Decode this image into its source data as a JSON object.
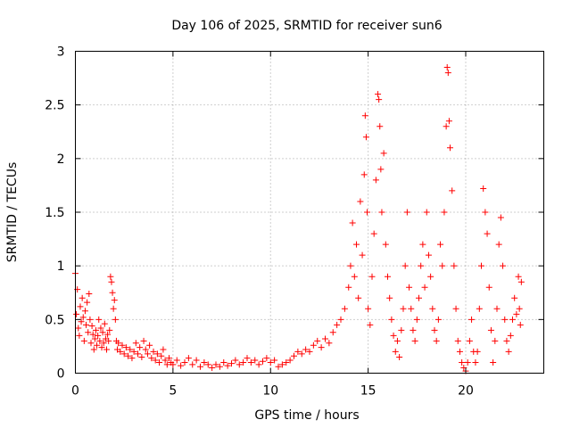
{
  "chart_data": {
    "type": "scatter",
    "title": "Day 106 of 2025, SRMTID for receiver sun6",
    "xlabel": "GPS time / hours",
    "ylabel": "SRMTID / TECUs",
    "xlim": [
      0,
      24
    ],
    "ylim": [
      0,
      3
    ],
    "xticks": [
      0,
      5,
      10,
      15,
      20
    ],
    "yticks": [
      0,
      0.5,
      1,
      1.5,
      2,
      2.5,
      3
    ],
    "xtick_labels": [
      "0",
      "5",
      "10",
      "15",
      "20"
    ],
    "ytick_labels": [
      "0",
      "0.5",
      "1",
      "1.5",
      "2",
      "2.5",
      "3"
    ],
    "grid": true,
    "marker": "+",
    "series": [
      {
        "name": "SRMTID",
        "color": "#ff0000",
        "points": [
          [
            0.0,
            0.93
          ],
          [
            0.05,
            0.55
          ],
          [
            0.1,
            0.78
          ],
          [
            0.15,
            0.42
          ],
          [
            0.2,
            0.35
          ],
          [
            0.25,
            0.62
          ],
          [
            0.3,
            0.48
          ],
          [
            0.35,
            0.7
          ],
          [
            0.4,
            0.52
          ],
          [
            0.45,
            0.3
          ],
          [
            0.5,
            0.58
          ],
          [
            0.55,
            0.45
          ],
          [
            0.6,
            0.66
          ],
          [
            0.65,
            0.38
          ],
          [
            0.7,
            0.74
          ],
          [
            0.75,
            0.5
          ],
          [
            0.8,
            0.28
          ],
          [
            0.85,
            0.44
          ],
          [
            0.9,
            0.36
          ],
          [
            0.95,
            0.22
          ],
          [
            1.0,
            0.32
          ],
          [
            1.05,
            0.4
          ],
          [
            1.1,
            0.26
          ],
          [
            1.15,
            0.35
          ],
          [
            1.2,
            0.5
          ],
          [
            1.25,
            0.3
          ],
          [
            1.3,
            0.42
          ],
          [
            1.35,
            0.24
          ],
          [
            1.4,
            0.38
          ],
          [
            1.45,
            0.28
          ],
          [
            1.5,
            0.46
          ],
          [
            1.55,
            0.32
          ],
          [
            1.6,
            0.22
          ],
          [
            1.65,
            0.36
          ],
          [
            1.7,
            0.3
          ],
          [
            1.75,
            0.4
          ],
          [
            1.8,
            0.9
          ],
          [
            1.85,
            0.85
          ],
          [
            1.9,
            0.75
          ],
          [
            1.95,
            0.6
          ],
          [
            2.0,
            0.68
          ],
          [
            2.05,
            0.5
          ],
          [
            2.1,
            0.3
          ],
          [
            2.15,
            0.22
          ],
          [
            2.2,
            0.28
          ],
          [
            2.3,
            0.2
          ],
          [
            2.4,
            0.26
          ],
          [
            2.5,
            0.18
          ],
          [
            2.6,
            0.24
          ],
          [
            2.7,
            0.16
          ],
          [
            2.8,
            0.22
          ],
          [
            2.9,
            0.14
          ],
          [
            3.0,
            0.2
          ],
          [
            3.1,
            0.28
          ],
          [
            3.2,
            0.18
          ],
          [
            3.3,
            0.24
          ],
          [
            3.4,
            0.15
          ],
          [
            3.5,
            0.3
          ],
          [
            3.6,
            0.22
          ],
          [
            3.7,
            0.18
          ],
          [
            3.8,
            0.26
          ],
          [
            3.9,
            0.14
          ],
          [
            4.0,
            0.2
          ],
          [
            4.1,
            0.12
          ],
          [
            4.2,
            0.18
          ],
          [
            4.3,
            0.1
          ],
          [
            4.4,
            0.16
          ],
          [
            4.5,
            0.22
          ],
          [
            4.6,
            0.12
          ],
          [
            4.7,
            0.08
          ],
          [
            4.8,
            0.14
          ],
          [
            4.9,
            0.1
          ],
          [
            5.0,
            0.08
          ],
          [
            5.2,
            0.12
          ],
          [
            5.4,
            0.07
          ],
          [
            5.6,
            0.1
          ],
          [
            5.8,
            0.14
          ],
          [
            6.0,
            0.08
          ],
          [
            6.2,
            0.12
          ],
          [
            6.4,
            0.06
          ],
          [
            6.6,
            0.1
          ],
          [
            6.8,
            0.08
          ],
          [
            7.0,
            0.05
          ],
          [
            7.2,
            0.08
          ],
          [
            7.4,
            0.06
          ],
          [
            7.6,
            0.1
          ],
          [
            7.8,
            0.07
          ],
          [
            8.0,
            0.09
          ],
          [
            8.2,
            0.12
          ],
          [
            8.4,
            0.08
          ],
          [
            8.6,
            0.1
          ],
          [
            8.8,
            0.14
          ],
          [
            9.0,
            0.1
          ],
          [
            9.2,
            0.12
          ],
          [
            9.4,
            0.08
          ],
          [
            9.6,
            0.11
          ],
          [
            9.8,
            0.14
          ],
          [
            10.0,
            0.1
          ],
          [
            10.2,
            0.12
          ],
          [
            10.4,
            0.06
          ],
          [
            10.6,
            0.08
          ],
          [
            10.8,
            0.1
          ],
          [
            11.0,
            0.12
          ],
          [
            11.2,
            0.16
          ],
          [
            11.4,
            0.2
          ],
          [
            11.6,
            0.18
          ],
          [
            11.8,
            0.22
          ],
          [
            12.0,
            0.2
          ],
          [
            12.2,
            0.26
          ],
          [
            12.4,
            0.3
          ],
          [
            12.6,
            0.24
          ],
          [
            12.8,
            0.32
          ],
          [
            13.0,
            0.28
          ],
          [
            13.2,
            0.38
          ],
          [
            13.4,
            0.45
          ],
          [
            13.6,
            0.5
          ],
          [
            13.8,
            0.6
          ],
          [
            14.0,
            0.8
          ],
          [
            14.1,
            1.0
          ],
          [
            14.2,
            1.4
          ],
          [
            14.3,
            0.9
          ],
          [
            14.4,
            1.2
          ],
          [
            14.5,
            0.7
          ],
          [
            14.6,
            1.6
          ],
          [
            14.7,
            1.1
          ],
          [
            14.8,
            1.85
          ],
          [
            14.85,
            2.4
          ],
          [
            14.9,
            2.2
          ],
          [
            14.95,
            1.5
          ],
          [
            15.0,
            0.6
          ],
          [
            15.1,
            0.45
          ],
          [
            15.2,
            0.9
          ],
          [
            15.3,
            1.3
          ],
          [
            15.4,
            1.8
          ],
          [
            15.5,
            2.6
          ],
          [
            15.55,
            2.55
          ],
          [
            15.6,
            2.3
          ],
          [
            15.65,
            1.9
          ],
          [
            15.7,
            1.5
          ],
          [
            15.8,
            2.05
          ],
          [
            15.9,
            1.2
          ],
          [
            16.0,
            0.9
          ],
          [
            16.1,
            0.7
          ],
          [
            16.2,
            0.5
          ],
          [
            16.3,
            0.35
          ],
          [
            16.4,
            0.2
          ],
          [
            16.5,
            0.3
          ],
          [
            16.6,
            0.15
          ],
          [
            16.7,
            0.4
          ],
          [
            16.8,
            0.6
          ],
          [
            16.9,
            1.0
          ],
          [
            17.0,
            1.5
          ],
          [
            17.1,
            0.8
          ],
          [
            17.2,
            0.6
          ],
          [
            17.3,
            0.4
          ],
          [
            17.4,
            0.3
          ],
          [
            17.5,
            0.5
          ],
          [
            17.6,
            0.7
          ],
          [
            17.7,
            1.0
          ],
          [
            17.8,
            1.2
          ],
          [
            17.9,
            0.8
          ],
          [
            18.0,
            1.5
          ],
          [
            18.1,
            1.1
          ],
          [
            18.2,
            0.9
          ],
          [
            18.3,
            0.6
          ],
          [
            18.4,
            0.4
          ],
          [
            18.5,
            0.3
          ],
          [
            18.6,
            0.5
          ],
          [
            18.7,
            1.2
          ],
          [
            18.8,
            1.0
          ],
          [
            18.9,
            1.5
          ],
          [
            19.0,
            2.3
          ],
          [
            19.05,
            2.85
          ],
          [
            19.1,
            2.8
          ],
          [
            19.15,
            2.35
          ],
          [
            19.2,
            2.1
          ],
          [
            19.3,
            1.7
          ],
          [
            19.4,
            1.0
          ],
          [
            19.5,
            0.6
          ],
          [
            19.6,
            0.3
          ],
          [
            19.7,
            0.2
          ],
          [
            19.8,
            0.1
          ],
          [
            19.9,
            0.05
          ],
          [
            20.0,
            0.02
          ],
          [
            20.1,
            0.1
          ],
          [
            20.2,
            0.3
          ],
          [
            20.3,
            0.5
          ],
          [
            20.4,
            0.2
          ],
          [
            20.5,
            0.1
          ],
          [
            20.6,
            0.2
          ],
          [
            20.7,
            0.6
          ],
          [
            20.8,
            1.0
          ],
          [
            20.9,
            1.72
          ],
          [
            21.0,
            1.5
          ],
          [
            21.1,
            1.3
          ],
          [
            21.2,
            0.8
          ],
          [
            21.3,
            0.4
          ],
          [
            21.4,
            0.1
          ],
          [
            21.5,
            0.3
          ],
          [
            21.6,
            0.6
          ],
          [
            21.7,
            1.2
          ],
          [
            21.8,
            1.45
          ],
          [
            21.9,
            1.0
          ],
          [
            22.0,
            0.5
          ],
          [
            22.1,
            0.3
          ],
          [
            22.2,
            0.2
          ],
          [
            22.3,
            0.35
          ],
          [
            22.4,
            0.5
          ],
          [
            22.5,
            0.7
          ],
          [
            22.6,
            0.55
          ],
          [
            22.7,
            0.9
          ],
          [
            22.75,
            0.6
          ],
          [
            22.8,
            0.45
          ],
          [
            22.85,
            0.85
          ]
        ]
      }
    ]
  }
}
